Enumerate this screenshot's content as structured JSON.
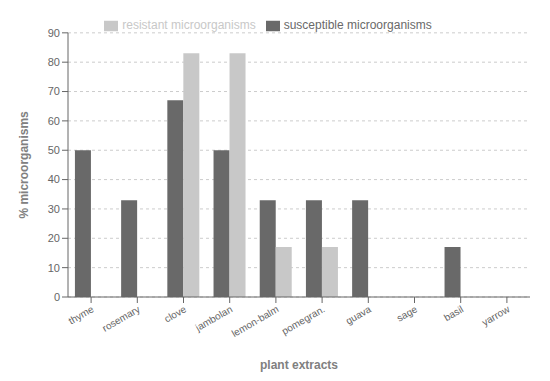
{
  "chart_data": {
    "type": "bar",
    "categories": [
      "thyme",
      "rosemary",
      "clove",
      "jambolan",
      "lemon-balm",
      "pomegran.",
      "guava",
      "sage",
      "basil",
      "yarrow"
    ],
    "series": [
      {
        "name": "susceptible microorganisms",
        "color": "#696969",
        "values": [
          50,
          33,
          67,
          50,
          33,
          33,
          33,
          0,
          17,
          0
        ]
      },
      {
        "name": "resistant microorganisms",
        "color": "#c8c8c8",
        "values": [
          0,
          0,
          83,
          83,
          17,
          17,
          0,
          0,
          0,
          0
        ]
      }
    ],
    "xlabel": "plant extracts",
    "ylabel": "% microorganisms",
    "ylim": [
      0,
      90
    ],
    "yticks": [
      0,
      10,
      20,
      30,
      40,
      50,
      60,
      70,
      80,
      90
    ],
    "grid": true,
    "legend": "top"
  }
}
